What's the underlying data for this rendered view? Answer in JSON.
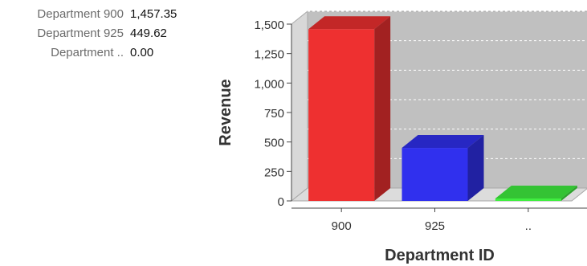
{
  "summary": [
    {
      "label": "Department 900",
      "value": "1,457.35"
    },
    {
      "label": "Department 925",
      "value": "449.62"
    },
    {
      "label": "Department ..",
      "value": "0.00"
    }
  ],
  "chart_data": {
    "type": "bar",
    "style": "3d",
    "categories": [
      "900",
      "925",
      ".."
    ],
    "values": [
      1457.35,
      449.62,
      0
    ],
    "colors": [
      "#ee3030",
      "#3030ee",
      "#40ee40"
    ],
    "xlabel": "Department ID",
    "ylabel": "Revenue",
    "ylim": [
      0,
      1500
    ],
    "yticks": [
      "0",
      "250",
      "500",
      "750",
      "1,000",
      "1,250",
      "1,500"
    ],
    "grid": true,
    "plot_background": "#c0c0c0"
  }
}
